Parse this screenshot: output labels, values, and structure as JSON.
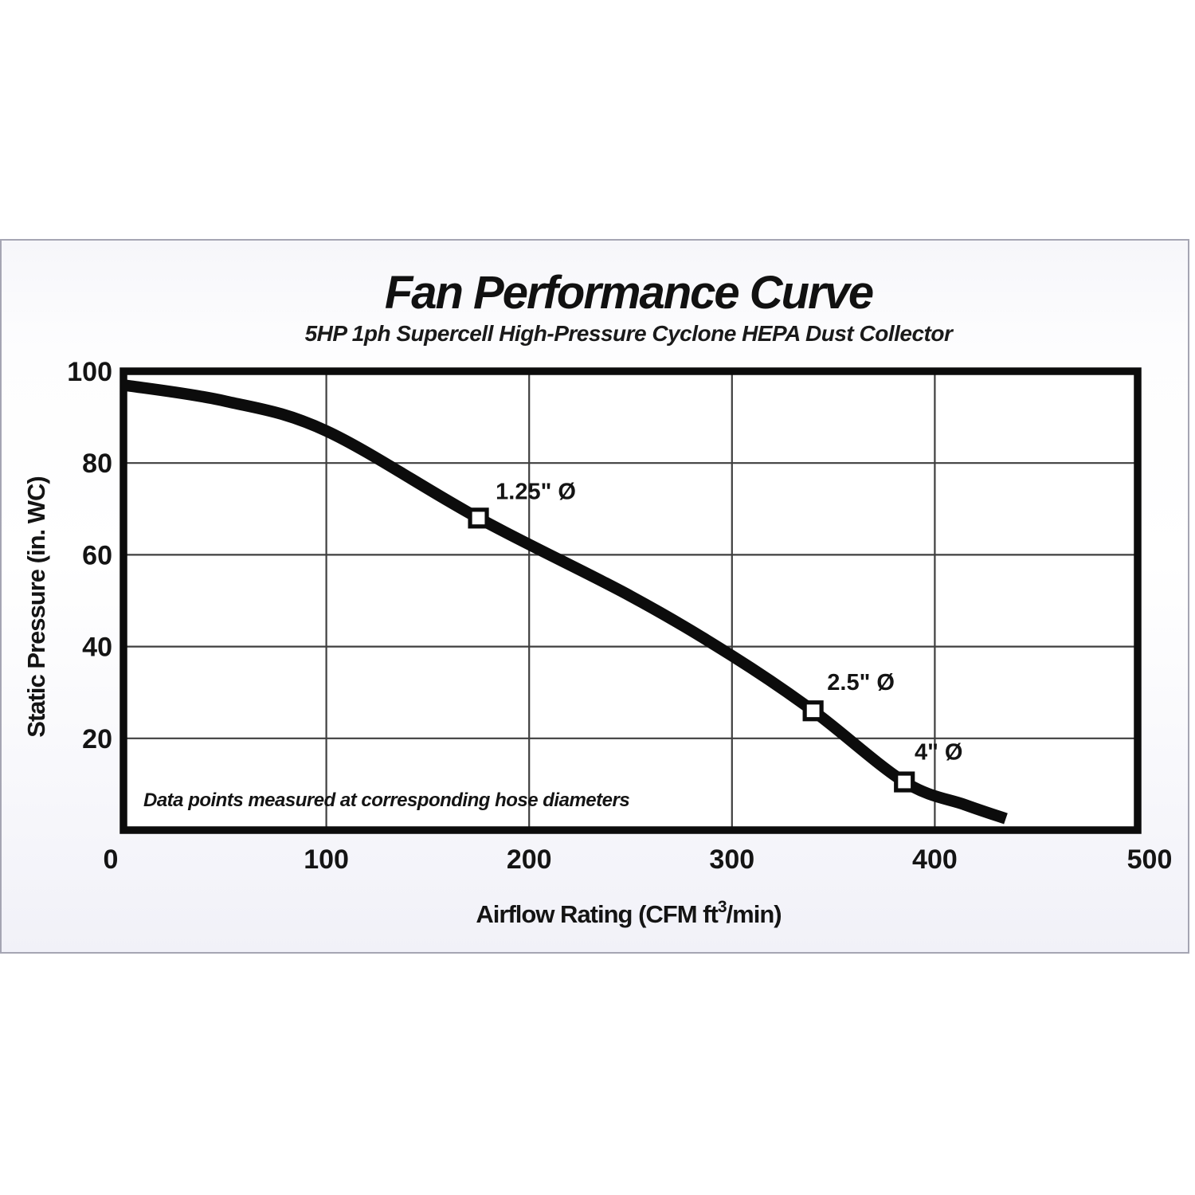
{
  "chart": {
    "title": "Fan Performance Curve",
    "subtitle": "5HP 1ph Supercell High-Pressure Cyclone HEPA Dust Collector"
  },
  "chart_data": {
    "type": "line",
    "title": "Fan Performance Curve",
    "subtitle": "5HP 1ph Supercell High-Pressure Cyclone HEPA Dust Collector",
    "ylabel": "Static Pressure (in. WC)",
    "xlabel_prefix": "Airflow Rating (CFM ft",
    "xlabel_superscript": "3",
    "xlabel_suffix": "/min)",
    "xlim": [
      0,
      500
    ],
    "ylim": [
      0,
      100
    ],
    "x_ticks": [
      0,
      100,
      200,
      300,
      400,
      500
    ],
    "y_ticks": [
      100,
      80,
      60,
      40,
      20
    ],
    "grid": true,
    "legend_position": "none",
    "annotation": "Data points measured at corresponding hose diameters",
    "series": [
      {
        "name": "fan-performance-curve",
        "points": [
          [
            0,
            97
          ],
          [
            50,
            93.5
          ],
          [
            100,
            87
          ],
          [
            175,
            68
          ],
          [
            250,
            51
          ],
          [
            300,
            38
          ],
          [
            340,
            26
          ],
          [
            385,
            10.5
          ],
          [
            415,
            5.5
          ],
          [
            435,
            2.5
          ]
        ]
      }
    ],
    "data_points": [
      {
        "label": "1.25\" Ø",
        "x": 175,
        "y": 68
      },
      {
        "label": "2.5\" Ø",
        "x": 340,
        "y": 26
      },
      {
        "label": "4\" Ø",
        "x": 385,
        "y": 10.5
      }
    ],
    "colors": {
      "curve": "#0c0c0c",
      "frame": "#0c0c0c",
      "grid": "#3f3f3f",
      "text": "#141414",
      "marker_fill": "#ffffff",
      "marker_stroke": "#0c0c0c",
      "plot_background": "#ffffff",
      "panel_border": "#a5a5b3",
      "panel_bg_top": "#f6f6fa",
      "panel_bg_bottom": "#f1f1f8"
    }
  }
}
